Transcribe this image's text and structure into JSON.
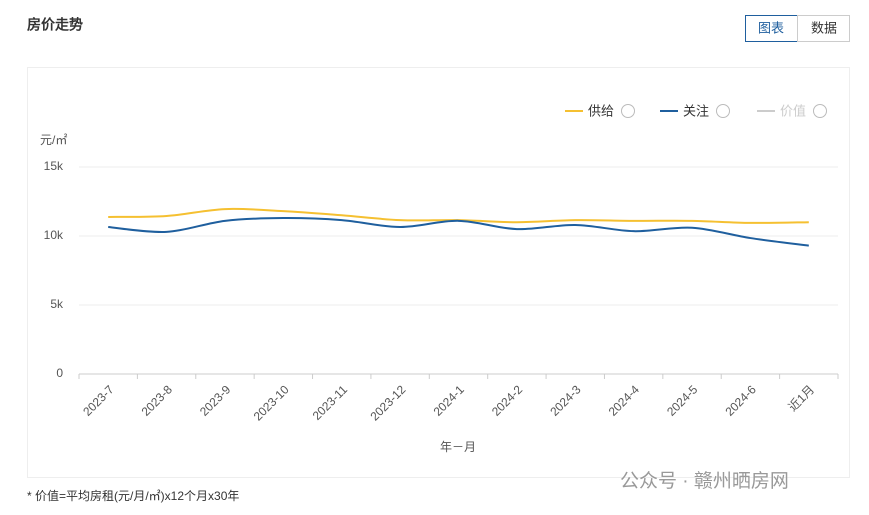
{
  "header": {
    "title": "房价走势",
    "tabs": [
      "图表",
      "数据"
    ]
  },
  "chart_data": {
    "type": "line",
    "y_label": "元/㎡",
    "x_label": "年－月",
    "categories": [
      "2023-7",
      "2023-8",
      "2023-9",
      "2023-10",
      "2023-11",
      "2023-12",
      "2024-1",
      "2024-2",
      "2024-3",
      "2024-4",
      "2024-5",
      "2024-6",
      "近1月"
    ],
    "series": [
      {
        "name": "供给",
        "color": "#f5c031",
        "values": [
          11380,
          11450,
          11950,
          11800,
          11500,
          11150,
          11150,
          11000,
          11150,
          11100,
          11100,
          10950,
          11000
        ]
      },
      {
        "name": "关注",
        "color": "#1f5f9e",
        "values": [
          10650,
          10300,
          11100,
          11300,
          11150,
          10650,
          11100,
          10500,
          10800,
          10350,
          10600,
          9850,
          9300
        ]
      },
      {
        "name": "价值",
        "color": "#cccccc",
        "hidden": true,
        "values": [
          null,
          null,
          null,
          null,
          null,
          null,
          null,
          null,
          null,
          null,
          null,
          null,
          null
        ]
      }
    ],
    "ylim": [
      0,
      15000
    ],
    "yticks": [
      {
        "value": 0,
        "label": "0"
      },
      {
        "value": 5000,
        "label": "5k"
      },
      {
        "value": 10000,
        "label": "10k"
      },
      {
        "value": 15000,
        "label": "15k"
      }
    ],
    "grid": true,
    "legend": "top-right"
  },
  "footnote": "* 价值=平均房租(元/月/㎡)x12个月x30年",
  "watermark": "公众号 · 赣州晒房网"
}
